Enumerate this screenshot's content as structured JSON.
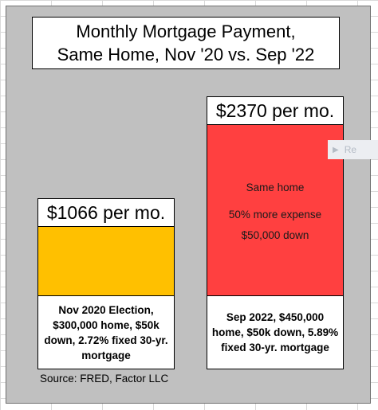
{
  "chart_data": {
    "type": "bar",
    "title": "Monthly Mortgage Payment,\nSame Home, Nov '20 vs. Sep '22",
    "categories": [
      "Nov 2020",
      "Sep 2022"
    ],
    "values": [
      1066,
      2370
    ],
    "unit": "per mo.",
    "value_labels": [
      "$1066 per mo.",
      "$2370 per mo."
    ],
    "bar_colors": [
      "#ffc000",
      "#ff4040"
    ],
    "captions": [
      "Nov 2020 Election, $300,000 home, $50k down, 2.72% fixed 30-yr. mortgage",
      "Sep 2022, $450,000 home, $50k down, 5.89% fixed 30-yr. mortgage"
    ],
    "annotations": [
      "Same home",
      "50% more expense",
      "$50,000 down"
    ],
    "source": "Source: FRED, Factor LLC",
    "ylim": [
      0,
      2370
    ],
    "grid": false,
    "legend": "none"
  },
  "overlay": {
    "play_icon": "play-icon",
    "label": "Re"
  }
}
